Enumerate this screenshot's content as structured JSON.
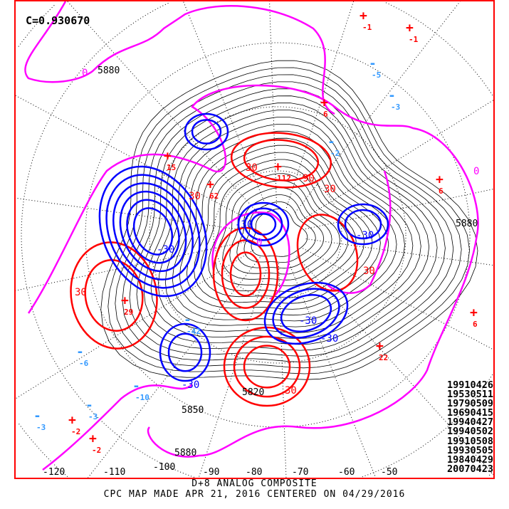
{
  "correlation_label": "C=0.930670",
  "analog_dates": [
    "19910426",
    "19530511",
    "19790509",
    "19690415",
    "19940427",
    "19940502",
    "19910508",
    "19930505",
    "19840429",
    "20070423"
  ],
  "caption": {
    "line1": "D+8 ANALOG COMPOSITE",
    "line2": "CPC MAP MADE APR 21, 2016 CENTERED ON 04/29/2016"
  },
  "longitude_labels": [
    "-120",
    "-110",
    "-100",
    "-90",
    "-80",
    "-70",
    "-60",
    "-50"
  ],
  "height_contour_labels": [
    "5880",
    "5880",
    "5880",
    "5850",
    "5820"
  ],
  "anomaly_contour_labels": {
    "positive": [
      "30",
      "30",
      "30",
      "30",
      "30",
      "90",
      "30"
    ],
    "negative": [
      "-30",
      "-30",
      "-30",
      "-30",
      "-30",
      "-30"
    ],
    "zero": [
      "0",
      "0",
      "0"
    ]
  },
  "anomaly_centers": [
    {
      "sign": "+",
      "value": "-1"
    },
    {
      "sign": "+",
      "value": "-1"
    },
    {
      "sign": "+",
      "value": "6"
    },
    {
      "sign": "+",
      "value": "6"
    },
    {
      "sign": "+",
      "value": "15"
    },
    {
      "sign": "+",
      "value": "112"
    },
    {
      "sign": "+",
      "value": "62"
    },
    {
      "sign": "+",
      "value": "29"
    },
    {
      "sign": "+",
      "value": "22"
    },
    {
      "sign": "+",
      "value": "-2"
    },
    {
      "sign": "+",
      "value": "-2"
    },
    {
      "sign": "+",
      "value": "6"
    },
    {
      "sign": "-",
      "value": "-5"
    },
    {
      "sign": "-",
      "value": "-3"
    },
    {
      "sign": "-",
      "value": "-6"
    },
    {
      "sign": "-",
      "value": "-10"
    },
    {
      "sign": "-",
      "value": "-3"
    },
    {
      "sign": "-",
      "value": "-3"
    },
    {
      "sign": "-",
      "value": "-2"
    },
    {
      "sign": "-",
      "value": "-42"
    }
  ],
  "colors": {
    "frame": "#ff0000",
    "positive_anomaly": "#ff0000",
    "negative_anomaly": "#0000ff",
    "zero_line": "#ff00ff",
    "height_contour": "#000000",
    "negative_marker": "#3399ff"
  }
}
